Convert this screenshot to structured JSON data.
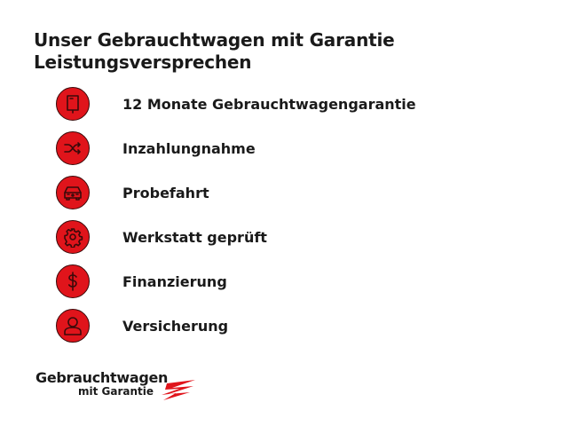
{
  "title": {
    "line1": "Unser Gebrauchtwagen mit Garantie",
    "line2": "Leistungsversprechen"
  },
  "items": [
    {
      "label": "12 Monate Gebrauchtwagengarantie",
      "icon": "book-icon"
    },
    {
      "label": "Inzahlungnahme",
      "icon": "shuffle-icon"
    },
    {
      "label": "Probefahrt",
      "icon": "car-icon"
    },
    {
      "label": "Werkstatt geprüft",
      "icon": "gear-icon"
    },
    {
      "label": "Finanzierung",
      "icon": "dollar-icon"
    },
    {
      "label": "Versicherung",
      "icon": "person-icon"
    }
  ],
  "logo": {
    "line1": "Gebrauchtwagen",
    "line2": "mit Garantie"
  },
  "colors": {
    "accent": "#e0141b",
    "text": "#1a1a1a"
  }
}
